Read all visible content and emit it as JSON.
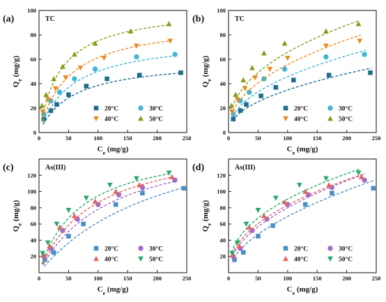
{
  "series_colors": [
    "#1d6e8c",
    "#3fb6d6",
    "#f2891e",
    "#8a9a1a",
    "#4a8fc4",
    "#a06cc8",
    "#e8605e",
    "#2aa96b"
  ],
  "chart_data": [
    {
      "type": "scatter",
      "panel": "(a)",
      "title": "TC",
      "xlabel": "Ce (mg/g)",
      "ylabel": "Qe (mg/g)",
      "xlim": [
        0,
        250
      ],
      "ylim": [
        0,
        100
      ],
      "xticks": [
        0,
        50,
        100,
        150,
        200,
        250
      ],
      "yticks": [
        0,
        20,
        40,
        60,
        80,
        100
      ],
      "legend_position": "bottom-right",
      "fit": "langmuir",
      "series": [
        {
          "name": "20°C",
          "marker": "square",
          "color": "#1d6e8c",
          "x": [
            8,
            20,
            30,
            50,
            80,
            115,
            170,
            240
          ],
          "y": [
            11,
            18,
            23,
            31,
            38,
            44,
            47,
            49
          ],
          "fit_params": {
            "qm": 60,
            "k": 0.018
          }
        },
        {
          "name": "30°C",
          "marker": "circle",
          "color": "#3fb6d6",
          "x": [
            8,
            20,
            35,
            60,
            95,
            165,
            230
          ],
          "y": [
            15,
            26,
            33,
            44,
            52,
            62,
            64
          ],
          "fit_params": {
            "qm": 78,
            "k": 0.018
          }
        },
        {
          "name": "40°C",
          "marker": "triangle-down",
          "color": "#f2891e",
          "x": [
            6,
            15,
            28,
            45,
            70,
            110,
            165,
            222
          ],
          "y": [
            17,
            27,
            36,
            45,
            53,
            61,
            71,
            75
          ],
          "fit_params": {
            "qm": 92,
            "k": 0.02
          }
        },
        {
          "name": "50°C",
          "marker": "triangle-up",
          "color": "#8a9a1a",
          "x": [
            5,
            12,
            25,
            40,
            60,
            95,
            155,
            220
          ],
          "y": [
            22,
            31,
            44,
            54,
            64,
            73,
            83,
            89
          ],
          "fit_params": {
            "qm": 103,
            "k": 0.027
          }
        }
      ]
    },
    {
      "type": "scatter",
      "panel": "(b)",
      "title": "TC",
      "xlabel": "Ce (mg/g)",
      "ylabel": "Qe (mg/g)",
      "xlim": [
        0,
        250
      ],
      "ylim": [
        0,
        100
      ],
      "xticks": [
        0,
        50,
        100,
        150,
        200,
        250
      ],
      "yticks": [
        0,
        20,
        40,
        60,
        80,
        100
      ],
      "legend_position": "bottom-right",
      "fit": "freundlich",
      "series": [
        {
          "name": "20°C",
          "marker": "square",
          "color": "#1d6e8c",
          "x": [
            8,
            20,
            30,
            55,
            80,
            110,
            170,
            240
          ],
          "y": [
            11,
            18,
            23,
            30,
            37,
            43,
            47,
            49
          ],
          "fit_params": {
            "kf": 4.0,
            "n": 0.47
          }
        },
        {
          "name": "30°C",
          "marker": "circle",
          "color": "#3fb6d6",
          "x": [
            8,
            20,
            35,
            60,
            95,
            165,
            230
          ],
          "y": [
            15,
            26,
            33,
            44,
            52,
            62,
            64
          ],
          "fit_params": {
            "kf": 5.5,
            "n": 0.46
          }
        },
        {
          "name": "40°C",
          "marker": "triangle-down",
          "color": "#f2891e",
          "x": [
            6,
            15,
            28,
            45,
            70,
            100,
            165,
            222
          ],
          "y": [
            17,
            27,
            36,
            45,
            52,
            61,
            71,
            75
          ],
          "fit_params": {
            "kf": 7.0,
            "n": 0.45
          }
        },
        {
          "name": "50°C",
          "marker": "triangle-up",
          "color": "#8a9a1a",
          "x": [
            5,
            12,
            25,
            40,
            60,
            95,
            165,
            220
          ],
          "y": [
            22,
            31,
            43,
            53,
            65,
            73,
            83,
            89
          ],
          "fit_params": {
            "kf": 9.5,
            "n": 0.42
          }
        }
      ]
    },
    {
      "type": "scatter",
      "panel": "(c)",
      "title": "As(III)",
      "xlabel": "Ce (mg/g)",
      "ylabel": "Qe (mg/g)",
      "xlim": [
        0,
        250
      ],
      "ylim": [
        0,
        140
      ],
      "xticks": [
        0,
        50,
        100,
        150,
        200,
        250
      ],
      "yticks": [
        20,
        40,
        60,
        80,
        100,
        120
      ],
      "legend_position": "bottom-right",
      "fit": "langmuir",
      "series": [
        {
          "name": "20°C",
          "marker": "square",
          "color": "#4a8fc4",
          "x": [
            10,
            25,
            50,
            75,
            130,
            175,
            245
          ],
          "y": [
            16,
            25,
            45,
            60,
            84,
            98,
            104
          ],
          "fit_params": {
            "qm": 200,
            "k": 0.0045
          }
        },
        {
          "name": "30°C",
          "marker": "circle",
          "color": "#a06cc8",
          "x": [
            8,
            20,
            40,
            65,
            100,
            135,
            175,
            230
          ],
          "y": [
            20,
            30,
            52,
            66,
            84,
            96,
            105,
            114
          ],
          "fit_params": {
            "qm": 170,
            "k": 0.0085
          }
        },
        {
          "name": "40°C",
          "marker": "triangle-up",
          "color": "#e8605e",
          "x": [
            7,
            18,
            35,
            60,
            95,
            130,
            170,
            225
          ],
          "y": [
            22,
            33,
            56,
            70,
            88,
            100,
            108,
            118
          ],
          "fit_params": {
            "qm": 165,
            "k": 0.011
          }
        },
        {
          "name": "50°C",
          "marker": "triangle-down",
          "color": "#2aa96b",
          "x": [
            6,
            15,
            30,
            50,
            80,
            120,
            165,
            220
          ],
          "y": [
            24,
            37,
            60,
            77,
            92,
            108,
            116,
            123
          ],
          "fit_params": {
            "qm": 160,
            "k": 0.0145
          }
        }
      ]
    },
    {
      "type": "scatter",
      "panel": "(d)",
      "title": "As(III)",
      "xlabel": "Ce (mg/g)",
      "ylabel": "Qe (mg/g)",
      "xlim": [
        0,
        250
      ],
      "ylim": [
        0,
        140
      ],
      "xticks": [
        0,
        50,
        100,
        150,
        200,
        250
      ],
      "yticks": [
        20,
        40,
        60,
        80,
        100,
        120
      ],
      "legend_position": "bottom-right",
      "fit": "freundlich",
      "series": [
        {
          "name": "20°C",
          "marker": "square",
          "color": "#4a8fc4",
          "x": [
            10,
            25,
            50,
            75,
            130,
            175,
            245
          ],
          "y": [
            16,
            25,
            45,
            58,
            84,
            98,
            104
          ],
          "fit_params": {
            "kf": 5.5,
            "n": 0.55
          }
        },
        {
          "name": "30°C",
          "marker": "circle",
          "color": "#a06cc8",
          "x": [
            8,
            20,
            40,
            65,
            100,
            135,
            175,
            230
          ],
          "y": [
            20,
            30,
            52,
            66,
            84,
            96,
            105,
            114
          ],
          "fit_params": {
            "kf": 8.0,
            "n": 0.5
          }
        },
        {
          "name": "40°C",
          "marker": "triangle-up",
          "color": "#e8605e",
          "x": [
            7,
            18,
            35,
            60,
            95,
            130,
            170,
            225
          ],
          "y": [
            22,
            33,
            56,
            70,
            87,
            100,
            108,
            118
          ],
          "fit_params": {
            "kf": 10.0,
            "n": 0.46
          }
        },
        {
          "name": "50°C",
          "marker": "triangle-down",
          "color": "#2aa96b",
          "x": [
            6,
            15,
            30,
            50,
            80,
            120,
            165,
            220
          ],
          "y": [
            24,
            37,
            60,
            77,
            92,
            108,
            116,
            123
          ],
          "fit_params": {
            "kf": 12.5,
            "n": 0.43
          }
        }
      ]
    }
  ]
}
